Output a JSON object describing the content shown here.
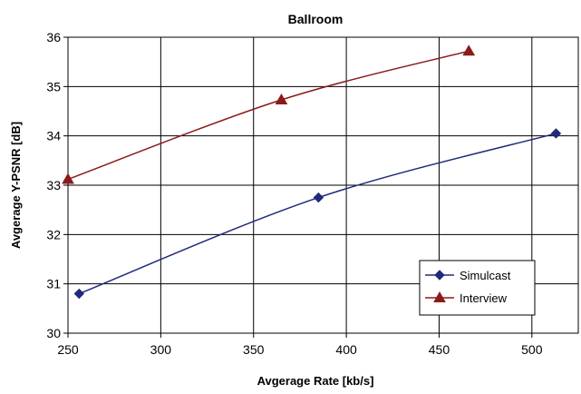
{
  "chart_data": {
    "type": "line",
    "title": "Ballroom",
    "xlabel": "Avgerage Rate [kb/s]",
    "ylabel": "Avgerage Y-PSNR [dB]",
    "xlim": [
      250,
      525
    ],
    "ylim": [
      30,
      36
    ],
    "xticks": [
      250,
      300,
      350,
      400,
      450,
      500
    ],
    "yticks": [
      30,
      31,
      32,
      33,
      34,
      35,
      36
    ],
    "grid": true,
    "legend_position": "lower-right",
    "series": [
      {
        "name": "Simulcast",
        "color": "#1f2a7a",
        "marker": "diamond",
        "x": [
          256,
          385,
          513
        ],
        "y": [
          30.8,
          32.75,
          34.05
        ]
      },
      {
        "name": "Interview",
        "color": "#8b1a1a",
        "marker": "triangle",
        "x": [
          250,
          365,
          466
        ],
        "y": [
          33.12,
          34.73,
          35.72
        ]
      }
    ]
  }
}
